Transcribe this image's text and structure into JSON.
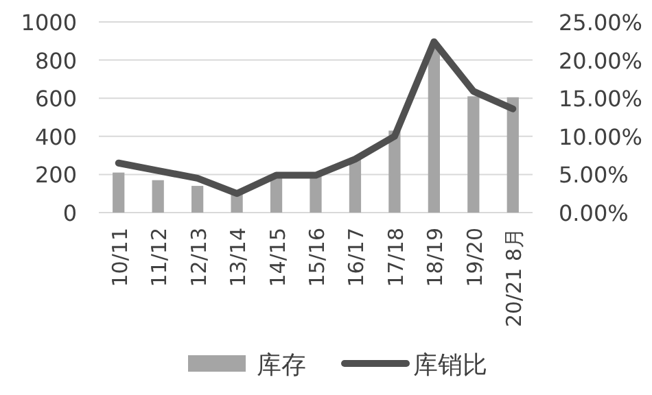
{
  "chart_data": {
    "type": "bar",
    "categories": [
      "10/11",
      "11/12",
      "12/13",
      "13/14",
      "14/15",
      "15/16",
      "16/17",
      "17/18",
      "18/19",
      "19/20",
      "20/21 8月"
    ],
    "series": [
      {
        "name": "库存",
        "color": "#a5a5a5",
        "values": [
          210,
          170,
          140,
          100,
          190,
          190,
          285,
          430,
          860,
          610,
          605
        ]
      },
      {
        "name": "库销比",
        "type": "line",
        "axis": "y2",
        "color": "#505050",
        "values": [
          6.5,
          5.5,
          4.5,
          2.5,
          4.9,
          4.9,
          7.0,
          10.0,
          22.4,
          15.9,
          13.6
        ]
      }
    ],
    "ylim": [
      0,
      1000
    ],
    "yticks": [
      0,
      200,
      400,
      600,
      800,
      1000
    ],
    "y2lim": [
      0,
      25
    ],
    "y2ticks": [
      {
        "value": 0,
        "label": "0.00%"
      },
      {
        "value": 5,
        "label": "5.00%"
      },
      {
        "value": 10,
        "label": "10.00%"
      },
      {
        "value": 15,
        "label": "15.00%"
      },
      {
        "value": 20,
        "label": "20.00%"
      },
      {
        "value": 25,
        "label": "25.00%"
      }
    ],
    "grid": "y",
    "legend": "bottom",
    "marker": "none"
  }
}
